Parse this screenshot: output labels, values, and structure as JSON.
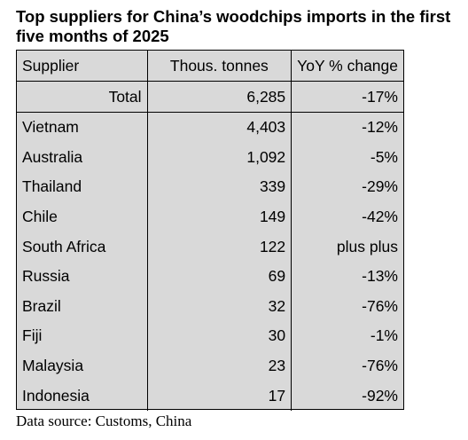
{
  "title": "Top suppliers for China’s woodchips imports in the first five months of 2025",
  "table": {
    "headers": [
      "Supplier",
      "Thous. tonnes",
      "YoY % change"
    ],
    "total": {
      "label": "Total",
      "tonnes": "6,285",
      "yoy": "-17%"
    },
    "rows": [
      {
        "supplier": "Vietnam",
        "tonnes": "4,403",
        "yoy": "-12%"
      },
      {
        "supplier": "Australia",
        "tonnes": "1,092",
        "yoy": "-5%"
      },
      {
        "supplier": "Thailand",
        "tonnes": "339",
        "yoy": "-29%"
      },
      {
        "supplier": "Chile",
        "tonnes": "149",
        "yoy": "-42%"
      },
      {
        "supplier": "South Africa",
        "tonnes": "122",
        "yoy": "plus plus"
      },
      {
        "supplier": "Russia",
        "tonnes": "69",
        "yoy": "-13%"
      },
      {
        "supplier": "Brazil",
        "tonnes": "32",
        "yoy": "-76%"
      },
      {
        "supplier": "Fiji",
        "tonnes": "30",
        "yoy": "-1%"
      },
      {
        "supplier": "Malaysia",
        "tonnes": "23",
        "yoy": "-76%"
      },
      {
        "supplier": "Indonesia",
        "tonnes": "17",
        "yoy": "-92%"
      }
    ]
  },
  "source": "Data source: Customs, China",
  "colors": {
    "table_background": "#d9d9d9",
    "border": "#000000"
  }
}
